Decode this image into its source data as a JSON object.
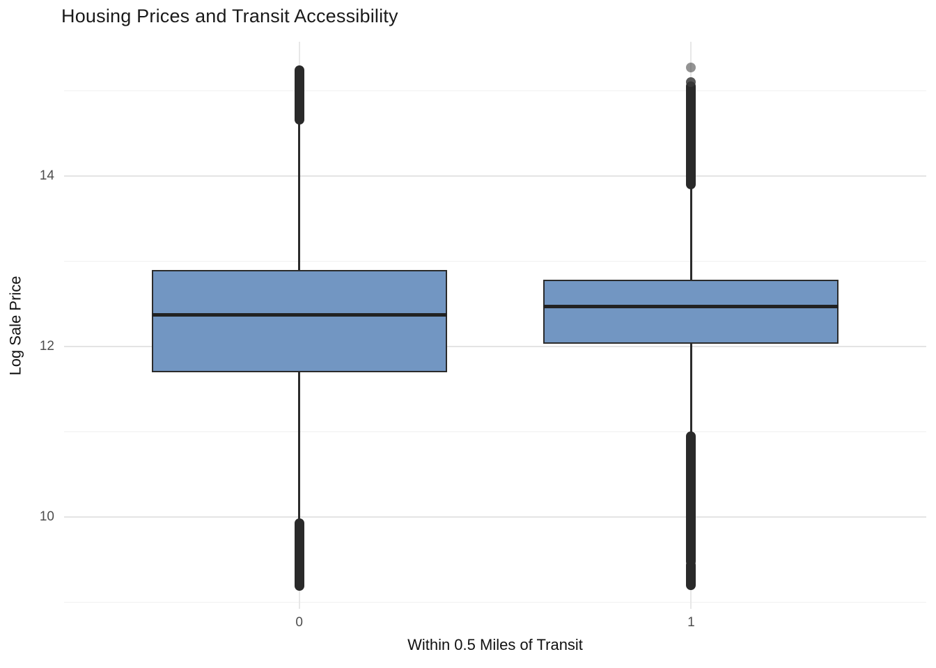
{
  "title": "Housing Prices and Transit Accessibility",
  "chart_data": {
    "type": "boxplot",
    "title": "Housing Prices and Transit Accessibility",
    "xlabel": "Within 0.5 Miles of Transit",
    "ylabel": "Log Sale Price",
    "categories": [
      "0",
      "1"
    ],
    "y_axis": {
      "major_ticks": [
        10,
        12,
        14
      ],
      "minor_gridlines": [
        9,
        11,
        13,
        15
      ],
      "range": [
        8.93,
        15.58
      ]
    },
    "grid": true,
    "legend": "none",
    "boxes": [
      {
        "category": "0",
        "q1": 11.7,
        "median": 12.37,
        "q3": 12.9,
        "whisker_low": 9.93,
        "whisker_high": 14.66,
        "outlier_clusters": [
          {
            "from": 14.66,
            "to": 15.24
          },
          {
            "from": 9.19,
            "to": 9.93
          }
        ],
        "isolated_outliers": []
      },
      {
        "category": "1",
        "q1": 12.03,
        "median": 12.47,
        "q3": 12.78,
        "whisker_low": 10.95,
        "whisker_high": 13.9,
        "outlier_clusters": [
          {
            "from": 13.9,
            "to": 15.05
          },
          {
            "from": 9.48,
            "to": 10.95
          },
          {
            "from": 9.2,
            "to": 9.44
          }
        ],
        "isolated_outliers": [
          {
            "value": 15.1,
            "alpha": 0.85
          },
          {
            "value": 15.27,
            "alpha": 0.55
          }
        ]
      }
    ],
    "colors": {
      "box_fill": "#7296c2",
      "box_stroke": "#2b2b2b",
      "median": "#222222",
      "outlier": "#2a2a2a",
      "grid_major": "#e4e4e4",
      "grid_minor": "#f0f0f0",
      "tick_label": "#4d4d4d",
      "axis_title": "#111111",
      "plot_title": "#1a1a1a",
      "background": "#ffffff"
    }
  }
}
